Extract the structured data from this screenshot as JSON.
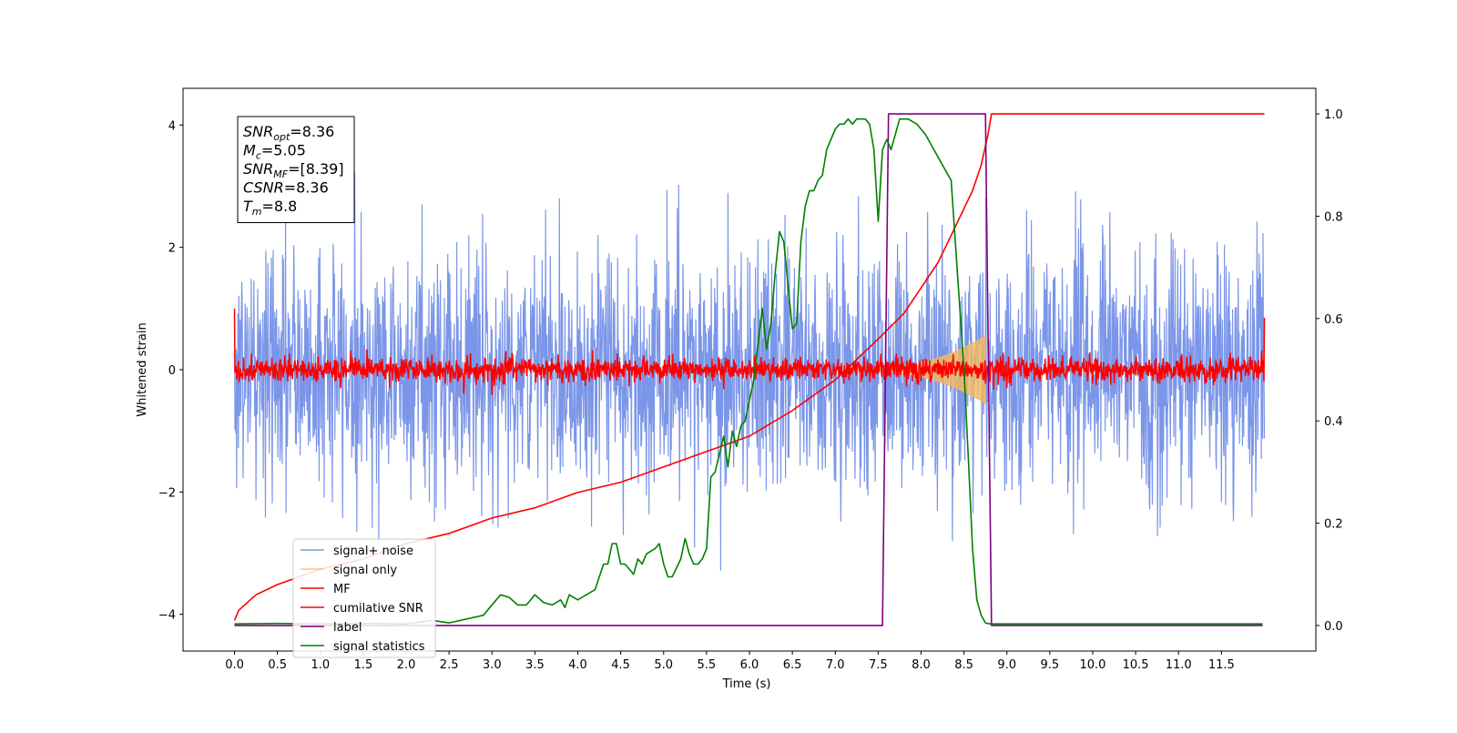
{
  "chart_data": {
    "type": "line",
    "xlabel": "Time (s)",
    "ylabel": "Whitened strain",
    "xlim": [
      -0.6,
      12.6
    ],
    "ylim": [
      -4.6,
      4.6
    ],
    "ylim_right": [
      -0.05,
      1.05
    ],
    "x_ticks": [
      0.0,
      0.5,
      1.0,
      1.5,
      2.0,
      2.5,
      3.0,
      3.5,
      4.0,
      4.5,
      5.0,
      5.5,
      6.0,
      6.5,
      7.0,
      7.5,
      8.0,
      8.5,
      9.0,
      9.5,
      10.0,
      10.5,
      11.0,
      11.5
    ],
    "x_tick_labels": [
      "0.0",
      "0.5",
      "1.0",
      "1.5",
      "2.0",
      "2.5",
      "3.0",
      "3.5",
      "4.0",
      "4.5",
      "5.0",
      "5.5",
      "6.0",
      "6.5",
      "7.0",
      "7.5",
      "8.0",
      "8.5",
      "9.0",
      "9.5",
      "10.0",
      "10.5",
      "11.0",
      "11.5"
    ],
    "y_ticks_left": [
      -4,
      -2,
      0,
      2,
      4
    ],
    "y_tick_labels_left": [
      "−4",
      "−2",
      "0",
      "2",
      "4"
    ],
    "y_ticks_right": [
      0.0,
      0.2,
      0.4,
      0.6,
      0.8,
      1.0
    ],
    "y_tick_labels_right": [
      "0.0",
      "0.2",
      "0.4",
      "0.6",
      "0.8",
      "1.0"
    ],
    "legend_position": "lower-left",
    "annotation": {
      "lines": [
        {
          "var": "SNR",
          "sub": "opt",
          "value": "=8.36"
        },
        {
          "var": "M",
          "sub": "c",
          "value": "=5.05"
        },
        {
          "var": "SNR",
          "sub": "MF",
          "value": "=[8.39]"
        },
        {
          "var": "CSNR",
          "sub": "",
          "value": "=8.36"
        },
        {
          "var": "T",
          "sub": "m",
          "value": "=8.8"
        }
      ]
    },
    "series": [
      {
        "name": "signal+ noise",
        "color": "#7b96e8",
        "axis": "left",
        "style": "noise",
        "x_range": [
          0.0,
          12.0
        ],
        "std": 1.0,
        "peak_max": 4.15,
        "peak_min": -4.1
      },
      {
        "name": "signal only",
        "color": "#f5b95a",
        "axis": "left",
        "style": "chirp",
        "x_range": [
          7.2,
          8.75
        ],
        "peak_amplitude": 0.55
      },
      {
        "name": "MF",
        "color": "#ff0000",
        "axis": "left",
        "style": "noise",
        "x_range": [
          0.0,
          12.0
        ],
        "std": 0.1,
        "end_values": [
          1.0,
          0.85
        ]
      },
      {
        "name": "cumilative SNR",
        "color": "#ff0000",
        "axis": "right",
        "x": [
          0.0,
          0.05,
          0.25,
          0.5,
          1.0,
          1.5,
          2.0,
          2.5,
          3.0,
          3.5,
          4.0,
          4.5,
          5.0,
          5.5,
          6.0,
          6.5,
          7.0,
          7.5,
          7.8,
          8.0,
          8.2,
          8.4,
          8.6,
          8.7,
          8.78,
          8.82,
          12.0
        ],
        "values": [
          0.01,
          0.03,
          0.06,
          0.08,
          0.11,
          0.13,
          0.16,
          0.18,
          0.21,
          0.23,
          0.26,
          0.28,
          0.31,
          0.34,
          0.37,
          0.42,
          0.48,
          0.56,
          0.61,
          0.66,
          0.71,
          0.78,
          0.85,
          0.9,
          0.96,
          1.0,
          1.0
        ]
      },
      {
        "name": "label",
        "color": "#800080",
        "axis": "right",
        "x": [
          0.0,
          7.55,
          7.62,
          8.75,
          8.82,
          11.98
        ],
        "values": [
          0.0,
          0.0,
          1.0,
          1.0,
          0.0,
          0.0
        ]
      },
      {
        "name": "signal statistics",
        "color": "#008000",
        "axis": "right",
        "x": [
          0.0,
          0.5,
          1.0,
          1.5,
          2.0,
          2.3,
          2.5,
          2.9,
          3.1,
          3.2,
          3.3,
          3.4,
          3.5,
          3.6,
          3.7,
          3.8,
          3.85,
          3.9,
          4.0,
          4.1,
          4.2,
          4.3,
          4.35,
          4.4,
          4.45,
          4.5,
          4.55,
          4.6,
          4.65,
          4.7,
          4.75,
          4.8,
          4.9,
          4.95,
          5.0,
          5.05,
          5.1,
          5.2,
          5.25,
          5.3,
          5.35,
          5.4,
          5.45,
          5.5,
          5.55,
          5.6,
          5.7,
          5.75,
          5.8,
          5.85,
          5.9,
          5.95,
          6.0,
          6.05,
          6.15,
          6.2,
          6.25,
          6.3,
          6.35,
          6.4,
          6.5,
          6.55,
          6.6,
          6.65,
          6.7,
          6.75,
          6.8,
          6.85,
          6.9,
          7.0,
          7.05,
          7.1,
          7.15,
          7.2,
          7.25,
          7.35,
          7.4,
          7.45,
          7.5,
          7.55,
          7.6,
          7.65,
          7.7,
          7.75,
          7.85,
          7.95,
          8.05,
          8.15,
          8.25,
          8.35,
          8.5,
          8.55,
          8.6,
          8.65,
          8.7,
          8.75,
          8.8,
          8.85,
          9.0,
          9.5,
          10.0,
          11.0,
          11.98
        ],
        "values": [
          0.003,
          0.004,
          0.003,
          0.004,
          0.003,
          0.01,
          0.005,
          0.02,
          0.06,
          0.055,
          0.04,
          0.04,
          0.06,
          0.045,
          0.04,
          0.05,
          0.035,
          0.06,
          0.05,
          0.06,
          0.07,
          0.12,
          0.12,
          0.16,
          0.16,
          0.12,
          0.12,
          0.11,
          0.1,
          0.13,
          0.12,
          0.14,
          0.15,
          0.16,
          0.12,
          0.095,
          0.095,
          0.13,
          0.17,
          0.14,
          0.12,
          0.12,
          0.13,
          0.15,
          0.29,
          0.3,
          0.37,
          0.31,
          0.38,
          0.35,
          0.39,
          0.4,
          0.44,
          0.48,
          0.62,
          0.54,
          0.59,
          0.69,
          0.77,
          0.75,
          0.58,
          0.59,
          0.75,
          0.82,
          0.85,
          0.85,
          0.87,
          0.88,
          0.93,
          0.97,
          0.98,
          0.98,
          0.99,
          0.98,
          0.99,
          0.99,
          0.98,
          0.93,
          0.79,
          0.93,
          0.95,
          0.93,
          0.96,
          0.99,
          0.99,
          0.98,
          0.96,
          0.93,
          0.9,
          0.87,
          0.5,
          0.33,
          0.15,
          0.05,
          0.02,
          0.005,
          0.003,
          0.003,
          0.003,
          0.003,
          0.003,
          0.003,
          0.003
        ]
      }
    ]
  }
}
